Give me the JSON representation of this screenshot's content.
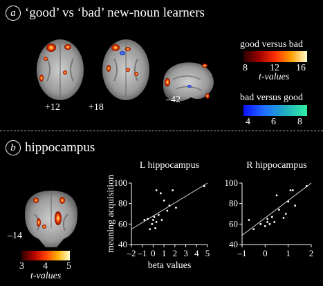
{
  "panel_a": {
    "letter": "a",
    "title": "‘good’ vs ‘bad’ new-noun learners",
    "slice_labels": [
      "+12",
      "+18",
      "–42"
    ],
    "colorbar_good": {
      "title": "good versus bad",
      "ticks": [
        "8",
        "12",
        "16"
      ],
      "unit": "t-values"
    },
    "colorbar_bad": {
      "title": "bad versus good",
      "ticks": [
        "4",
        "6",
        "8"
      ]
    }
  },
  "panel_b": {
    "letter": "b",
    "title": "hippocampus",
    "slice_label": "–14",
    "colorbar": {
      "ticks": [
        "3",
        "4",
        "5"
      ],
      "unit": "t-values"
    }
  },
  "colors": {
    "background": "#000000",
    "hot_low": "#4a0000",
    "hot_mid": "#ff3000",
    "hot_high": "#ffffc0",
    "cool_low": "#1020ff",
    "cool_high": "#30f0a0",
    "plot_line": "#ffffff"
  },
  "chart_data": [
    {
      "type": "scatter",
      "title": "L hippocampus",
      "xlabel": "beta values",
      "ylabel": "meaning acquisition",
      "xlim": [
        -2,
        5
      ],
      "ylim": [
        40,
        100
      ],
      "xticks": [
        "–2",
        "–1",
        "0",
        "1",
        "2",
        "3",
        "4",
        "5"
      ],
      "yticks": [
        "40",
        "60",
        "80",
        "100"
      ],
      "points": [
        {
          "x": -0.8,
          "y": 64
        },
        {
          "x": -0.5,
          "y": 65
        },
        {
          "x": -0.3,
          "y": 55
        },
        {
          "x": -0.1,
          "y": 60
        },
        {
          "x": 0.0,
          "y": 64
        },
        {
          "x": 0.1,
          "y": 67
        },
        {
          "x": 0.2,
          "y": 56
        },
        {
          "x": 0.3,
          "y": 62
        },
        {
          "x": 0.3,
          "y": 93
        },
        {
          "x": 0.5,
          "y": 69
        },
        {
          "x": 0.7,
          "y": 90
        },
        {
          "x": 0.8,
          "y": 64
        },
        {
          "x": 1.0,
          "y": 83
        },
        {
          "x": 1.3,
          "y": 73
        },
        {
          "x": 1.5,
          "y": 78
        },
        {
          "x": 1.8,
          "y": 93
        },
        {
          "x": 2.1,
          "y": 76
        },
        {
          "x": 4.7,
          "y": 97
        }
      ],
      "fit": [
        [
          -2,
          55
        ],
        [
          5,
          100
        ]
      ]
    },
    {
      "type": "scatter",
      "title": "R hippocampus",
      "xlabel": "",
      "ylabel": "",
      "xlim": [
        -1,
        2
      ],
      "ylim": [
        40,
        100
      ],
      "xticks": [
        "–1",
        "0",
        "1",
        "2"
      ],
      "yticks": [
        "40",
        "60",
        "80",
        "100"
      ],
      "points": [
        {
          "x": -0.7,
          "y": 64
        },
        {
          "x": -0.5,
          "y": 55
        },
        {
          "x": -0.2,
          "y": 60
        },
        {
          "x": 0.0,
          "y": 58
        },
        {
          "x": 0.1,
          "y": 62
        },
        {
          "x": 0.1,
          "y": 65
        },
        {
          "x": 0.2,
          "y": 60
        },
        {
          "x": 0.3,
          "y": 67
        },
        {
          "x": 0.4,
          "y": 62
        },
        {
          "x": 0.5,
          "y": 88
        },
        {
          "x": 0.6,
          "y": 74
        },
        {
          "x": 0.8,
          "y": 66
        },
        {
          "x": 0.9,
          "y": 70
        },
        {
          "x": 1.0,
          "y": 82
        },
        {
          "x": 1.1,
          "y": 93
        },
        {
          "x": 1.2,
          "y": 93
        },
        {
          "x": 1.3,
          "y": 78
        },
        {
          "x": 1.8,
          "y": 97
        }
      ],
      "fit": [
        [
          -1,
          49
        ],
        [
          2,
          100
        ]
      ]
    }
  ]
}
